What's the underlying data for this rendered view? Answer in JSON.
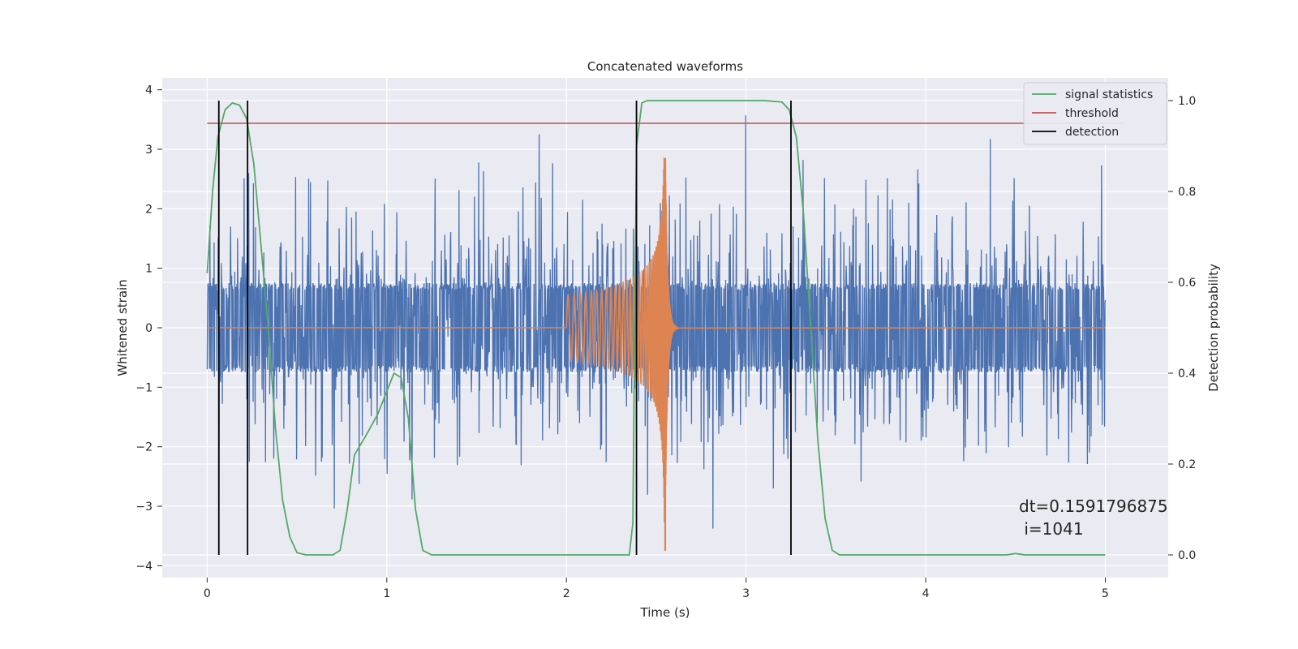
{
  "chart_data": {
    "type": "line",
    "title": "Concatenated waveforms",
    "xlabel": "Time (s)",
    "ylabel": "Whitened strain",
    "y2label": "Detection probability",
    "xlim": [
      -0.25,
      5.35
    ],
    "ylim": [
      -4.2,
      4.2
    ],
    "y2lim": [
      -0.05,
      1.05
    ],
    "x_ticks": [
      0,
      1,
      2,
      3,
      4,
      5
    ],
    "x_tick_labels": [
      "0",
      "1",
      "2",
      "3",
      "4",
      "5"
    ],
    "y_ticks": [
      -4,
      -3,
      -2,
      -1,
      0,
      1,
      2,
      3,
      4
    ],
    "y_tick_labels": [
      "−4",
      "−3",
      "−2",
      "−1",
      "0",
      "1",
      "2",
      "3",
      "4"
    ],
    "y2_ticks": [
      0.0,
      0.2,
      0.4,
      0.6,
      0.8,
      1.0
    ],
    "y2_tick_labels": [
      "0.0",
      "0.2",
      "0.4",
      "0.6",
      "0.8",
      "1.0"
    ],
    "grid": true,
    "legend_position": "top-right",
    "colors": {
      "strain": "#4c72b0",
      "injection": "#dd8452",
      "signal_statistics": "#55a868",
      "threshold": "#c44e52",
      "detection": "#000000",
      "plot_background": "#eaeaf2",
      "grid": "#ffffff"
    },
    "series": [
      {
        "name": "",
        "description_key": "strain",
        "x_range": [
          0,
          5
        ],
        "core_amplitude": 0.75,
        "peak_amplitude": 3.75
      },
      {
        "name": "",
        "description_key": "injection",
        "x_range": [
          2.0,
          2.56
        ],
        "peak_x": 2.55,
        "peak_min": -3.75,
        "peak_max": 2.85
      },
      {
        "name": "signal statistics",
        "axis": "right",
        "points": [
          [
            0.0,
            0.62
          ],
          [
            0.03,
            0.8
          ],
          [
            0.06,
            0.92
          ],
          [
            0.1,
            0.98
          ],
          [
            0.14,
            0.995
          ],
          [
            0.18,
            0.99
          ],
          [
            0.22,
            0.96
          ],
          [
            0.26,
            0.86
          ],
          [
            0.3,
            0.68
          ],
          [
            0.34,
            0.5
          ],
          [
            0.38,
            0.28
          ],
          [
            0.42,
            0.12
          ],
          [
            0.46,
            0.04
          ],
          [
            0.5,
            0.005
          ],
          [
            0.55,
            0.0
          ],
          [
            0.7,
            0.0
          ],
          [
            0.74,
            0.01
          ],
          [
            0.78,
            0.1
          ],
          [
            0.82,
            0.22
          ],
          [
            0.88,
            0.26
          ],
          [
            0.95,
            0.31
          ],
          [
            1.0,
            0.36
          ],
          [
            1.04,
            0.4
          ],
          [
            1.08,
            0.39
          ],
          [
            1.12,
            0.3
          ],
          [
            1.16,
            0.1
          ],
          [
            1.2,
            0.01
          ],
          [
            1.25,
            0.0
          ],
          [
            2.35,
            0.0
          ],
          [
            2.37,
            0.07
          ],
          [
            2.39,
            0.9
          ],
          [
            2.42,
            0.995
          ],
          [
            2.45,
            1.0
          ],
          [
            3.1,
            1.0
          ],
          [
            3.2,
            0.997
          ],
          [
            3.24,
            0.98
          ],
          [
            3.28,
            0.92
          ],
          [
            3.32,
            0.75
          ],
          [
            3.36,
            0.5
          ],
          [
            3.4,
            0.25
          ],
          [
            3.44,
            0.08
          ],
          [
            3.48,
            0.01
          ],
          [
            3.52,
            0.0
          ],
          [
            4.45,
            0.0
          ],
          [
            4.5,
            0.003
          ],
          [
            4.55,
            0.0
          ],
          [
            5.0,
            0.0
          ]
        ]
      },
      {
        "name": "threshold",
        "axis": "right",
        "value": 0.95,
        "x_range": [
          0,
          5.1
        ]
      },
      {
        "name": "detection",
        "axis": "right",
        "x_values": [
          0.065,
          0.225,
          2.39,
          3.25
        ],
        "y_range": [
          0.0,
          1.0
        ]
      }
    ],
    "annotations": {
      "dt": "dt=0.1591796875",
      "i": " i=1041"
    }
  }
}
